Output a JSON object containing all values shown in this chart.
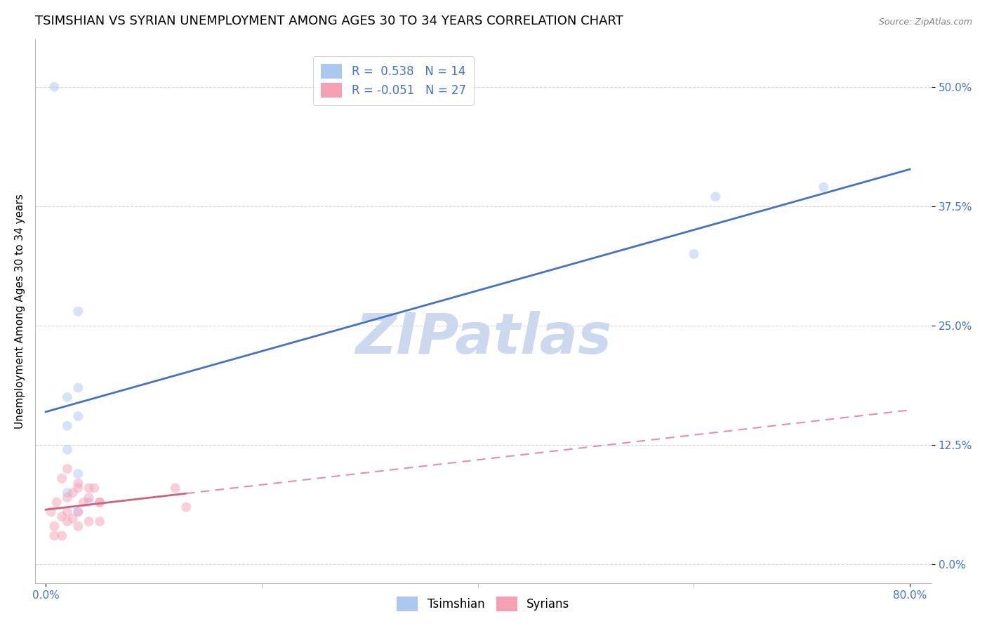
{
  "title": "TSIMSHIAN VS SYRIAN UNEMPLOYMENT AMONG AGES 30 TO 34 YEARS CORRELATION CHART",
  "source": "Source: ZipAtlas.com",
  "ylabel": "Unemployment Among Ages 30 to 34 years",
  "xlim": [
    -0.01,
    0.82
  ],
  "ylim": [
    -0.02,
    0.55
  ],
  "yticks": [
    0.0,
    0.125,
    0.25,
    0.375,
    0.5
  ],
  "ytick_labels": [
    "0.0%",
    "12.5%",
    "25.0%",
    "37.5%",
    "50.0%"
  ],
  "xtick_labels_bottom": [
    "0.0%",
    "80.0%"
  ],
  "xticks_bottom": [
    0.0,
    0.8
  ],
  "grid_color": "#cccccc",
  "background_color": "#ffffff",
  "tsimshian_color": "#aac8f0",
  "syrian_color": "#f5a0b5",
  "tsimshian_line_color": "#4472c4",
  "syrian_line_solid_color": "#d06080",
  "syrian_line_dash_color": "#e090a8",
  "tsimshian_R": 0.538,
  "tsimshian_N": 14,
  "syrian_R": -0.051,
  "syrian_N": 27,
  "tsimshian_x": [
    0.008,
    0.02,
    0.03,
    0.03,
    0.02,
    0.02,
    0.03,
    0.02,
    0.04,
    0.03,
    0.03,
    0.62,
    0.72,
    0.6
  ],
  "tsimshian_y": [
    0.5,
    0.175,
    0.265,
    0.155,
    0.145,
    0.12,
    0.095,
    0.075,
    0.065,
    0.055,
    0.185,
    0.385,
    0.395,
    0.325
  ],
  "syrian_x": [
    0.005,
    0.008,
    0.01,
    0.015,
    0.02,
    0.02,
    0.025,
    0.03,
    0.03,
    0.035,
    0.04,
    0.04,
    0.045,
    0.05,
    0.05,
    0.015,
    0.02,
    0.03,
    0.04,
    0.05,
    0.008,
    0.015,
    0.12,
    0.13,
    0.02,
    0.025,
    0.03
  ],
  "syrian_y": [
    0.055,
    0.04,
    0.065,
    0.05,
    0.07,
    0.045,
    0.075,
    0.08,
    0.055,
    0.065,
    0.07,
    0.045,
    0.08,
    0.065,
    0.045,
    0.09,
    0.1,
    0.085,
    0.08,
    0.065,
    0.03,
    0.03,
    0.08,
    0.06,
    0.055,
    0.048,
    0.04
  ],
  "watermark": "ZIPatlas",
  "watermark_color": "#ccd8ee",
  "title_fontsize": 13,
  "axis_label_fontsize": 11,
  "tick_fontsize": 11,
  "legend_fontsize": 12,
  "marker_size": 100,
  "marker_alpha": 0.5
}
